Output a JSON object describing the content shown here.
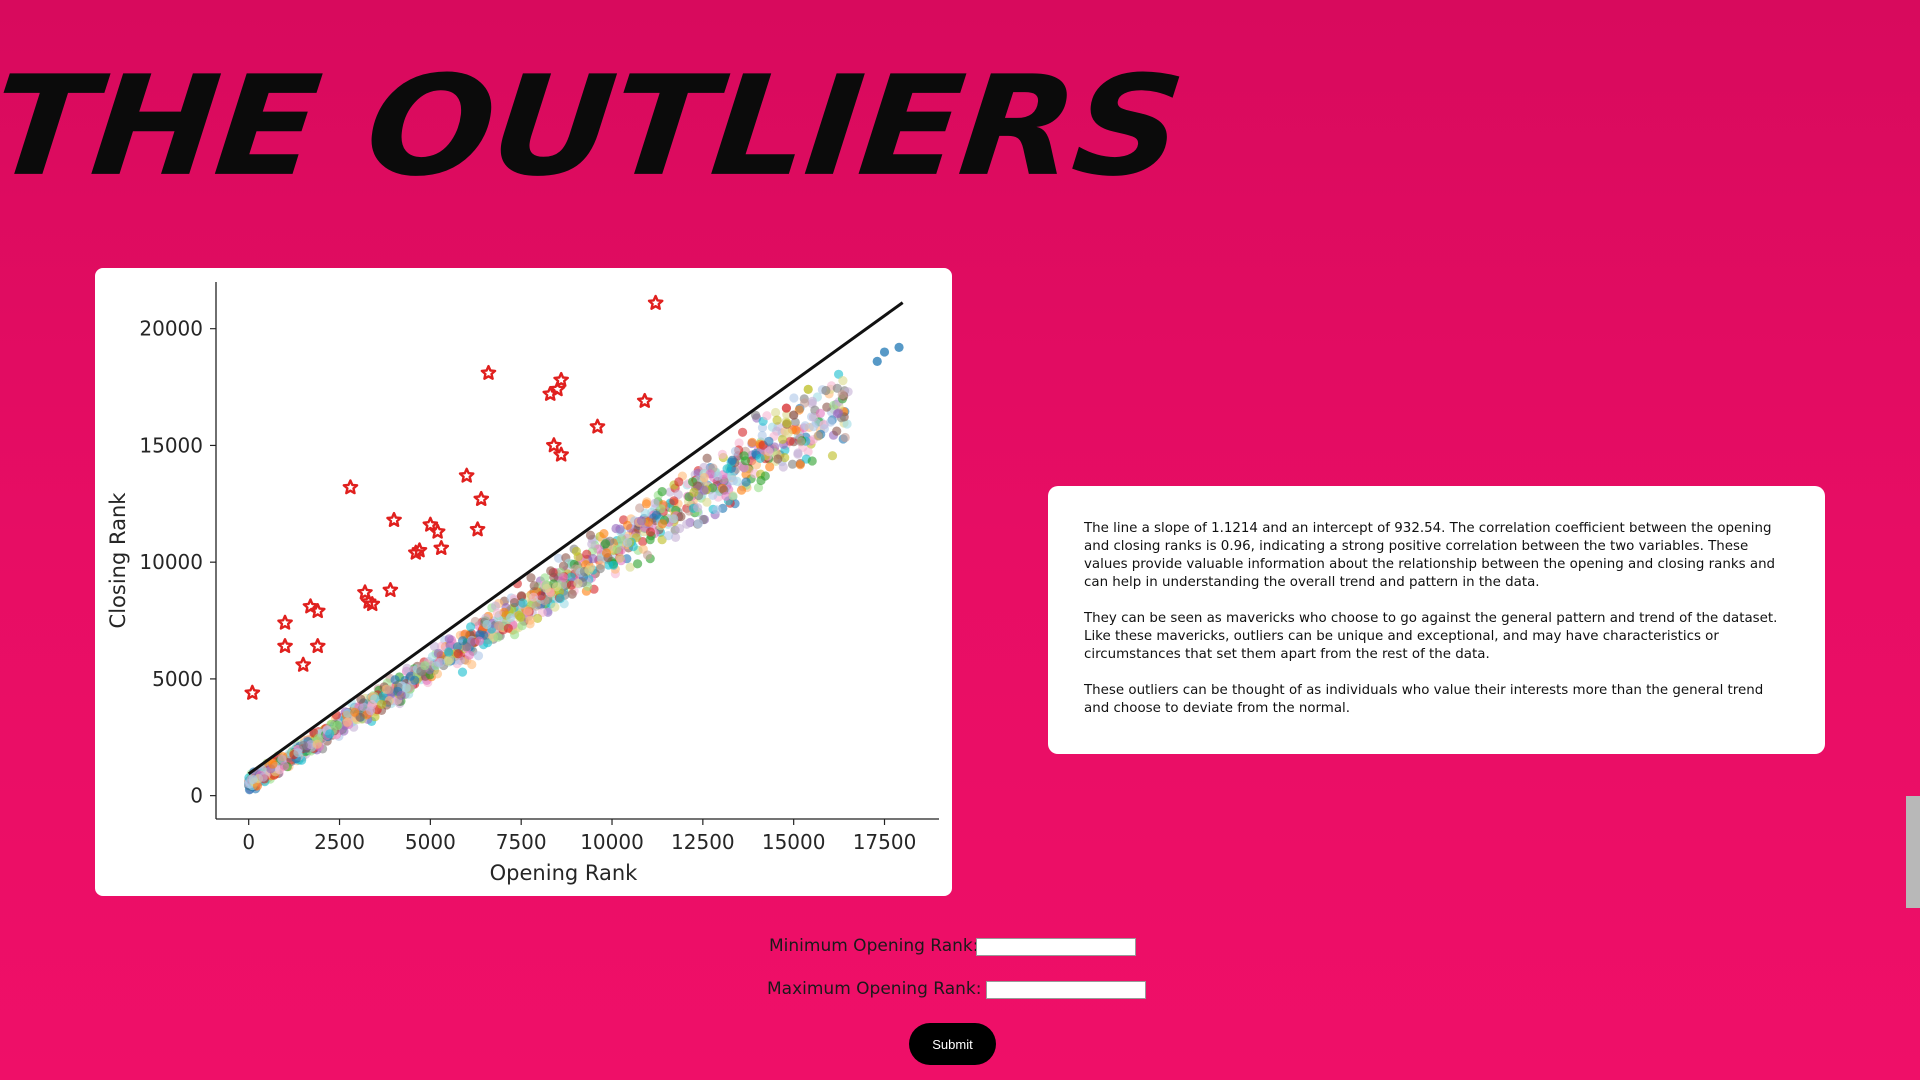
{
  "page": {
    "title": "THE OUTLIERS"
  },
  "chart_data": {
    "type": "scatter",
    "xlabel": "Opening Rank",
    "ylabel": "Closing Rank",
    "xlim": [
      -900,
      19000
    ],
    "ylim": [
      -1000,
      22000
    ],
    "x_ticks": [
      0,
      2500,
      5000,
      7500,
      10000,
      12500,
      15000,
      17500
    ],
    "y_ticks": [
      0,
      5000,
      10000,
      15000,
      20000
    ],
    "x_tick_labels": [
      "0",
      "2500",
      "5000",
      "7500",
      "10000",
      "12500",
      "15000",
      "17500"
    ],
    "y_tick_labels": [
      "0",
      "5000",
      "10000",
      "15000",
      "20000"
    ],
    "regression": {
      "slope": 1.1214,
      "intercept": 932.54,
      "x_range": [
        0,
        18000
      ],
      "color": "#111111"
    },
    "outliers": {
      "marker": "star",
      "color": "#e0201e",
      "points": [
        [
          100,
          4400
        ],
        [
          1000,
          7400
        ],
        [
          1000,
          6400
        ],
        [
          1500,
          5600
        ],
        [
          1700,
          8100
        ],
        [
          1900,
          7900
        ],
        [
          1900,
          6400
        ],
        [
          2800,
          13200
        ],
        [
          3200,
          8700
        ],
        [
          3300,
          8300
        ],
        [
          3400,
          8200
        ],
        [
          3900,
          8800
        ],
        [
          4000,
          11800
        ],
        [
          4600,
          10400
        ],
        [
          4700,
          10500
        ],
        [
          5000,
          11600
        ],
        [
          5200,
          11300
        ],
        [
          5300,
          10600
        ],
        [
          6000,
          13700
        ],
        [
          6300,
          11400
        ],
        [
          6400,
          12700
        ],
        [
          6600,
          18100
        ],
        [
          8300,
          17200
        ],
        [
          8400,
          15000
        ],
        [
          8500,
          17400
        ],
        [
          8600,
          17800
        ],
        [
          8600,
          14600
        ],
        [
          9600,
          15800
        ],
        [
          10900,
          16900
        ],
        [
          11200,
          21100
        ]
      ]
    },
    "cloud": {
      "x_max": 16500,
      "slope": 1.0,
      "intercept": 300,
      "colors": [
        "#1f77b4",
        "#ff7f0e",
        "#2ca02c",
        "#d62728",
        "#9467bd",
        "#8c564b",
        "#e377c2",
        "#7f7f7f",
        "#bcbd22",
        "#17becf",
        "#aec7e8",
        "#ffbb78",
        "#98df8a",
        "#c5b0d5",
        "#c49c94",
        "#f7b6d2",
        "#dbdb8d",
        "#9edae5"
      ]
    },
    "extra_points": [
      {
        "x": 17300,
        "y": 18600,
        "color": "#1f77b4"
      },
      {
        "x": 17500,
        "y": 19000,
        "color": "#1f77b4"
      },
      {
        "x": 17900,
        "y": 19200,
        "color": "#1f77b4"
      },
      {
        "x": 15400,
        "y": 17400,
        "color": "#bcbd22"
      },
      {
        "x": 15000,
        "y": 16300,
        "color": "#8c564b"
      },
      {
        "x": 14800,
        "y": 16600,
        "color": "#d62728"
      }
    ]
  },
  "info": {
    "paragraphs": [
      "The line a slope of 1.1214 and an intercept of 932.54. The correlation coefficient between the opening and closing ranks is 0.96, indicating a strong positive correlation between the two variables. These values provide valuable information about the relationship between the opening and closing ranks and can help in understanding the overall trend and pattern in the data.",
      "They can be seen as mavericks who choose to go against the general pattern and trend of the dataset. Like these mavericks, outliers can be unique and exceptional, and may have characteristics or circumstances that set them apart from the rest of the data.",
      "These outliers can be thought of as individuals who value their interests more than the general trend and choose to deviate from the normal."
    ]
  },
  "form": {
    "min_label": "Minimum Opening Rank:",
    "max_label": "Maximum Opening Rank:",
    "min_value": "",
    "max_value": "",
    "submit_label": "Submit"
  }
}
